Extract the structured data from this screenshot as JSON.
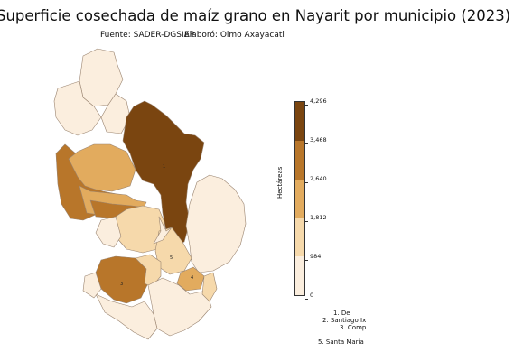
{
  "title": "Superficie cosechada de maíz grano en Nayarit por municipio (2023)",
  "source": "Fuente: SADER-DGSIAP",
  "author": "Elaboró: Olmo Axayacatl",
  "colorbar": {
    "label": "Hectáreas",
    "ticks": [
      "4,296",
      "3,468",
      "2,640",
      "1,812",
      "984",
      "0"
    ],
    "colors": [
      "#7a4510",
      "#b8762a",
      "#e2ab5e",
      "#f6d9ab",
      "#fbeede"
    ]
  },
  "map_labels": [
    "1",
    "3",
    "4",
    "5"
  ],
  "legend": {
    "entries": [
      "1. De",
      "2. Santiago Ix",
      "3. Comp",
      "5. Santa María"
    ]
  }
}
